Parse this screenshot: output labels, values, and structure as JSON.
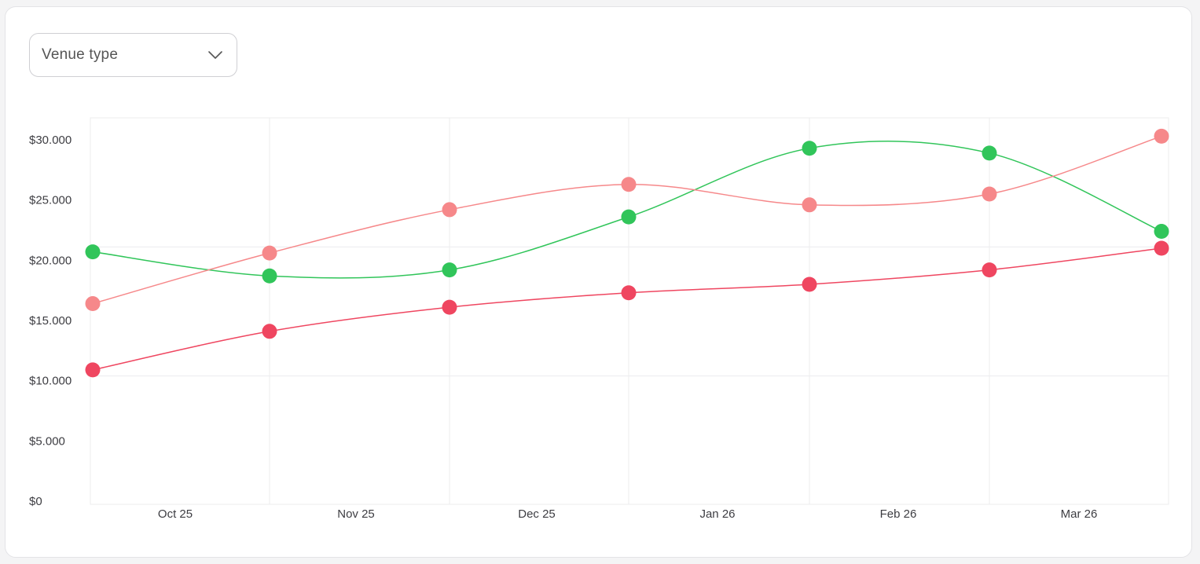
{
  "filter": {
    "label": "Venue type",
    "icon": "chevron-down-icon"
  },
  "chart_data": {
    "type": "line",
    "categories": [
      "Oct 25",
      "Nov 25",
      "Dec 25",
      "Jan 26",
      "Feb 26",
      "Mar 26",
      ""
    ],
    "x_tick_labels": [
      "Oct 25",
      "Nov 25",
      "Dec 25",
      "Jan 26",
      "Feb 26",
      "Mar 26"
    ],
    "y_tick_labels": [
      "$0",
      "$5.000",
      "$10.000",
      "$15.000",
      "$20.000",
      "$25.000",
      "$30.000"
    ],
    "y_ticks": [
      0,
      5000,
      10000,
      15000,
      20000,
      25000,
      30000
    ],
    "ylim": [
      0,
      31800
    ],
    "grid": true,
    "smooth": true,
    "series": [
      {
        "color": "#31c55a",
        "values": [
          20700,
          18700,
          19200,
          23600,
          29300,
          28900,
          22400
        ]
      },
      {
        "color": "#f6888a",
        "values": [
          16400,
          20600,
          24200,
          26300,
          24600,
          25500,
          30300
        ]
      },
      {
        "color": "#ef4660",
        "values": [
          10900,
          14100,
          16100,
          17300,
          18000,
          19200,
          21000
        ]
      }
    ]
  }
}
